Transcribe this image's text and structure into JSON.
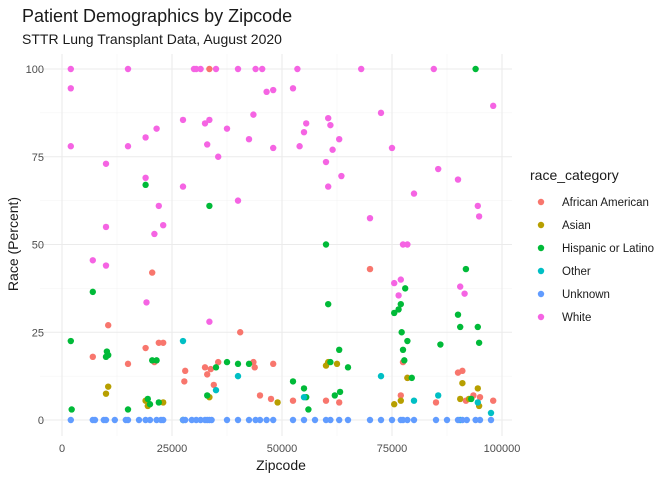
{
  "chart_data": {
    "type": "scatter",
    "title": "Patient Demographics by Zipcode",
    "subtitle": "STTR Lung Transplant Data, August 2020",
    "xlabel": "Zipcode",
    "ylabel": "Race (Percent)",
    "xlim": [
      0,
      100000
    ],
    "ylim": [
      0,
      100
    ],
    "x_ticks": [
      0,
      25000,
      50000,
      75000,
      100000
    ],
    "y_ticks": [
      0,
      25,
      50,
      75,
      100
    ],
    "grid": true,
    "legend": {
      "title": "race_category",
      "position": "right"
    },
    "series": [
      {
        "name": "African American",
        "color": "#F8766D",
        "points": [
          [
            7000,
            18
          ],
          [
            10500,
            27
          ],
          [
            15000,
            16
          ],
          [
            19000,
            20.5
          ],
          [
            20500,
            42
          ],
          [
            22000,
            22
          ],
          [
            23000,
            22
          ],
          [
            21000,
            16.5
          ],
          [
            27800,
            11
          ],
          [
            28000,
            14
          ],
          [
            32500,
            15
          ],
          [
            33000,
            13
          ],
          [
            33500,
            100
          ],
          [
            33800,
            14.5
          ],
          [
            34500,
            10
          ],
          [
            35500,
            16.5
          ],
          [
            40500,
            25
          ],
          [
            43500,
            16.5
          ],
          [
            43800,
            15
          ],
          [
            48000,
            16
          ],
          [
            45000,
            7
          ],
          [
            47500,
            6
          ],
          [
            52500,
            5.5
          ],
          [
            60000,
            5.5
          ],
          [
            63000,
            5
          ],
          [
            70000,
            43
          ],
          [
            77500,
            16.5
          ],
          [
            77000,
            7
          ],
          [
            78500,
            12
          ],
          [
            85000,
            5
          ],
          [
            90000,
            13.5
          ],
          [
            91000,
            14
          ],
          [
            91800,
            5.5
          ],
          [
            93500,
            7
          ],
          [
            95000,
            6.5
          ],
          [
            98000,
            5.5
          ]
        ]
      },
      {
        "name": "Asian",
        "color": "#B79F00",
        "points": [
          [
            10000,
            7.5
          ],
          [
            10500,
            9.5
          ],
          [
            19000,
            5.5
          ],
          [
            19500,
            4
          ],
          [
            23000,
            5
          ],
          [
            33500,
            6.5
          ],
          [
            49000,
            5
          ],
          [
            60000,
            15.5
          ],
          [
            60500,
            16.5
          ],
          [
            62500,
            16
          ],
          [
            75500,
            4.5
          ],
          [
            77000,
            5.5
          ],
          [
            78500,
            12
          ],
          [
            91000,
            10.5
          ],
          [
            90500,
            6
          ],
          [
            92500,
            6
          ],
          [
            94500,
            9
          ],
          [
            94800,
            4
          ]
        ]
      },
      {
        "name": "Hispanic or Latino",
        "color": "#00BA38",
        "points": [
          [
            2000,
            22.5
          ],
          [
            2200,
            3
          ],
          [
            7000,
            36.5
          ],
          [
            10000,
            18
          ],
          [
            10200,
            19.5
          ],
          [
            10500,
            18.5
          ],
          [
            15000,
            3
          ],
          [
            19000,
            67
          ],
          [
            19500,
            6
          ],
          [
            20000,
            4.5
          ],
          [
            20500,
            17
          ],
          [
            21500,
            17
          ],
          [
            22000,
            5
          ],
          [
            27500,
            0
          ],
          [
            33500,
            61
          ],
          [
            33000,
            7
          ],
          [
            35000,
            15
          ],
          [
            37500,
            16.5
          ],
          [
            40000,
            16
          ],
          [
            42500,
            16
          ],
          [
            52500,
            11
          ],
          [
            55000,
            9
          ],
          [
            55500,
            6.5
          ],
          [
            56000,
            3
          ],
          [
            60000,
            50
          ],
          [
            60500,
            33
          ],
          [
            61000,
            16.5
          ],
          [
            62000,
            7
          ],
          [
            63000,
            20
          ],
          [
            63200,
            8
          ],
          [
            65000,
            15
          ],
          [
            75500,
            30.5
          ],
          [
            76500,
            31.5
          ],
          [
            77000,
            33
          ],
          [
            77200,
            25
          ],
          [
            77500,
            20
          ],
          [
            77800,
            17
          ],
          [
            78000,
            37.5
          ],
          [
            78500,
            22.5
          ],
          [
            79500,
            12
          ],
          [
            86000,
            21.5
          ],
          [
            90000,
            30
          ],
          [
            90500,
            26.5
          ],
          [
            91800,
            43
          ],
          [
            94000,
            100
          ],
          [
            94500,
            26.5
          ],
          [
            94800,
            22
          ],
          [
            93000,
            6
          ]
        ]
      },
      {
        "name": "Other",
        "color": "#00BFC4",
        "points": [
          [
            27500,
            22.5
          ],
          [
            35000,
            8.5
          ],
          [
            40000,
            12.5
          ],
          [
            55000,
            6.5
          ],
          [
            72500,
            12.5
          ],
          [
            80000,
            5.5
          ],
          [
            85500,
            7
          ],
          [
            90500,
            0
          ],
          [
            94500,
            5
          ],
          [
            97500,
            2
          ]
        ]
      },
      {
        "name": "Unknown",
        "color": "#619CFF",
        "points": [
          [
            2000,
            0
          ],
          [
            7000,
            0
          ],
          [
            7500,
            0
          ],
          [
            9500,
            0
          ],
          [
            10000,
            0
          ],
          [
            12000,
            0
          ],
          [
            14500,
            0
          ],
          [
            15000,
            0
          ],
          [
            17500,
            0
          ],
          [
            19000,
            0
          ],
          [
            20000,
            0
          ],
          [
            21500,
            0
          ],
          [
            22500,
            0
          ],
          [
            23000,
            0
          ],
          [
            27500,
            0
          ],
          [
            28000,
            0
          ],
          [
            29500,
            0
          ],
          [
            30500,
            0
          ],
          [
            31500,
            0
          ],
          [
            32500,
            0
          ],
          [
            33000,
            0
          ],
          [
            33500,
            0
          ],
          [
            34000,
            0
          ],
          [
            37500,
            0
          ],
          [
            40000,
            0
          ],
          [
            42500,
            0
          ],
          [
            44000,
            0
          ],
          [
            45000,
            0
          ],
          [
            46500,
            0
          ],
          [
            48000,
            0
          ],
          [
            52500,
            0
          ],
          [
            55000,
            0
          ],
          [
            57500,
            0
          ],
          [
            60000,
            0
          ],
          [
            61000,
            0
          ],
          [
            63000,
            0
          ],
          [
            65000,
            0
          ],
          [
            70000,
            0
          ],
          [
            72500,
            0
          ],
          [
            75000,
            0
          ],
          [
            77000,
            0
          ],
          [
            77500,
            0
          ],
          [
            78500,
            0
          ],
          [
            80000,
            0
          ],
          [
            85000,
            0
          ],
          [
            87500,
            0
          ],
          [
            90000,
            0
          ],
          [
            91000,
            0
          ],
          [
            92000,
            0
          ],
          [
            94000,
            0
          ],
          [
            95000,
            0
          ],
          [
            97500,
            0
          ]
        ]
      },
      {
        "name": "White",
        "color": "#F564E3",
        "points": [
          [
            2000,
            100
          ],
          [
            2000,
            94.5
          ],
          [
            2000,
            78
          ],
          [
            7000,
            45.5
          ],
          [
            10000,
            73
          ],
          [
            10000,
            55
          ],
          [
            10000,
            44
          ],
          [
            15000,
            100
          ],
          [
            15000,
            78
          ],
          [
            19000,
            69
          ],
          [
            19000,
            80.5
          ],
          [
            19200,
            33.5
          ],
          [
            21500,
            83
          ],
          [
            21000,
            53
          ],
          [
            22000,
            61
          ],
          [
            23000,
            55.5
          ],
          [
            27500,
            85.5
          ],
          [
            27500,
            66.5
          ],
          [
            30000,
            100
          ],
          [
            30500,
            100
          ],
          [
            31500,
            100
          ],
          [
            32500,
            84.5
          ],
          [
            33000,
            78.5
          ],
          [
            33500,
            85.5
          ],
          [
            33500,
            28
          ],
          [
            35000,
            100
          ],
          [
            35500,
            75
          ],
          [
            37500,
            83
          ],
          [
            40000,
            100
          ],
          [
            40000,
            62.5
          ],
          [
            42500,
            80
          ],
          [
            43500,
            87
          ],
          [
            44000,
            100
          ],
          [
            45500,
            100
          ],
          [
            46500,
            93.5
          ],
          [
            48000,
            94
          ],
          [
            48000,
            77.5
          ],
          [
            52500,
            94.5
          ],
          [
            53500,
            100
          ],
          [
            54000,
            78
          ],
          [
            55000,
            82
          ],
          [
            55500,
            84.5
          ],
          [
            60000,
            73.5
          ],
          [
            60500,
            66.5
          ],
          [
            60500,
            86
          ],
          [
            61000,
            84
          ],
          [
            61500,
            77
          ],
          [
            63000,
            80
          ],
          [
            63500,
            69.5
          ],
          [
            68000,
            100
          ],
          [
            70000,
            57.5
          ],
          [
            72500,
            87.5
          ],
          [
            75000,
            77.5
          ],
          [
            75500,
            39
          ],
          [
            76500,
            35.5
          ],
          [
            77000,
            40
          ],
          [
            77500,
            50
          ],
          [
            78500,
            50
          ],
          [
            80000,
            64.5
          ],
          [
            84500,
            100
          ],
          [
            85500,
            71.5
          ],
          [
            90000,
            68.5
          ],
          [
            90500,
            38
          ],
          [
            91500,
            36
          ],
          [
            94500,
            61
          ],
          [
            94800,
            58
          ],
          [
            98000,
            89.5
          ]
        ]
      }
    ]
  }
}
